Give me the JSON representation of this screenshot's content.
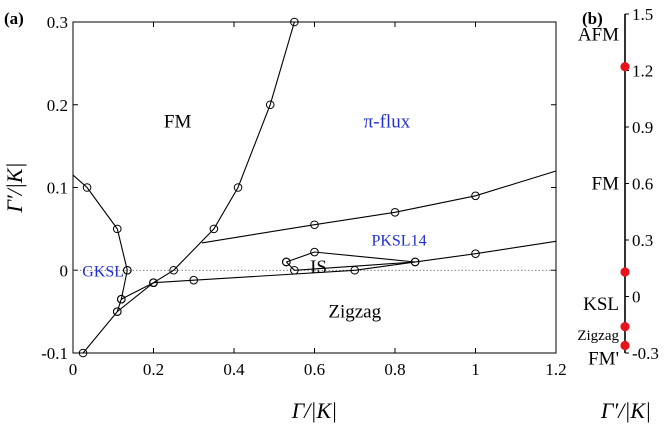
{
  "chart_data": [
    {
      "type": "line",
      "panel_label": "(a)",
      "xlabel": "Γ/|K|",
      "ylabel": "Γ′/|K|",
      "xlim": [
        0,
        1.2
      ],
      "ylim": [
        -0.1,
        0.3
      ],
      "xticks": [
        "0",
        "0.2",
        "0.4",
        "0.6",
        "0.8",
        "1",
        "1.2"
      ],
      "yticks": [
        "-0.1",
        "0",
        "0.1",
        "0.2",
        "0.3"
      ],
      "grid": false,
      "reference_line": {
        "y": 0,
        "style": "dotted"
      },
      "boundaries": [
        {
          "x": [
            0.025,
            0.11,
            0.2,
            0.25,
            0.35,
            0.41,
            0.49,
            0.55
          ],
          "y": [
            -0.1,
            -0.05,
            -0.015,
            0,
            0.05,
            0.1,
            0.2,
            0.3
          ],
          "markers": [
            true,
            true,
            true,
            true,
            true,
            true,
            true,
            true
          ]
        },
        {
          "x": [
            0,
            0.035,
            0.11,
            0.135
          ],
          "y": [
            0.115,
            0.1,
            0.05,
            0
          ],
          "markers": [
            false,
            true,
            true,
            true
          ]
        },
        {
          "x": [
            0.135,
            0.12,
            0.11
          ],
          "y": [
            0,
            -0.035,
            -0.05
          ],
          "markers": [
            true,
            true,
            true
          ]
        },
        {
          "x": [
            0.12,
            0.2
          ],
          "y": [
            -0.035,
            -0.015
          ],
          "markers": [
            true,
            true
          ]
        },
        {
          "x": [
            0.2,
            0.3,
            0.7,
            1.0,
            1.2
          ],
          "y": [
            -0.015,
            -0.012,
            0,
            0.02,
            0.035
          ],
          "markers": [
            true,
            true,
            true,
            true,
            false
          ]
        },
        {
          "x": [
            0.32,
            0.6,
            0.8,
            1.0,
            1.2
          ],
          "y": [
            0.033,
            0.055,
            0.07,
            0.09,
            0.12
          ],
          "markers": [
            false,
            true,
            true,
            true,
            false
          ]
        },
        {
          "x": [
            0.53,
            0.55,
            0.85
          ],
          "y": [
            0.01,
            0,
            0.01
          ],
          "markers": [
            true,
            true,
            true
          ]
        },
        {
          "x": [
            0.53,
            0.6,
            0.85
          ],
          "y": [
            0.01,
            0.022,
            0.01
          ],
          "markers": [
            true,
            true,
            true
          ]
        }
      ],
      "regions": [
        {
          "label": "FM",
          "x": 0.26,
          "y": 0.18,
          "color": "#000000"
        },
        {
          "label": "π-flux",
          "x": 0.78,
          "y": 0.18,
          "color": "#1f2fd0"
        },
        {
          "label": "PKSL14",
          "x": 0.81,
          "y": 0.037,
          "color": "#1f2fd0"
        },
        {
          "label": "IS",
          "x": 0.61,
          "y": 0.004,
          "color": "#000000"
        },
        {
          "label": "GKSL",
          "x": 0.075,
          "y": 0.0,
          "color": "#1f2fd0"
        },
        {
          "label": "Zigzag",
          "x": 0.7,
          "y": -0.05,
          "color": "#000000"
        }
      ]
    },
    {
      "type": "line",
      "panel_label": "(b)",
      "xlabel": "Γ′/|K|",
      "ylim": [
        -0.3,
        1.5
      ],
      "yticks": [
        "-0.3",
        "0",
        "0.3",
        "0.6",
        "0.9",
        "1.2",
        "1.5"
      ],
      "points": [
        1.22,
        0.13,
        -0.16,
        -0.26
      ],
      "point_color": "#e8141c",
      "regions": [
        {
          "label": "AFM",
          "y": 1.39,
          "color": "#000000"
        },
        {
          "label": "FM",
          "y": 0.6,
          "color": "#000000"
        },
        {
          "label": "KSL",
          "y": -0.04,
          "color": "#1f2fd0"
        },
        {
          "label": "Zigzag",
          "y": -0.2,
          "color": "#000000"
        },
        {
          "label": "FM'",
          "y": -0.33,
          "color": "#000000"
        }
      ]
    }
  ]
}
